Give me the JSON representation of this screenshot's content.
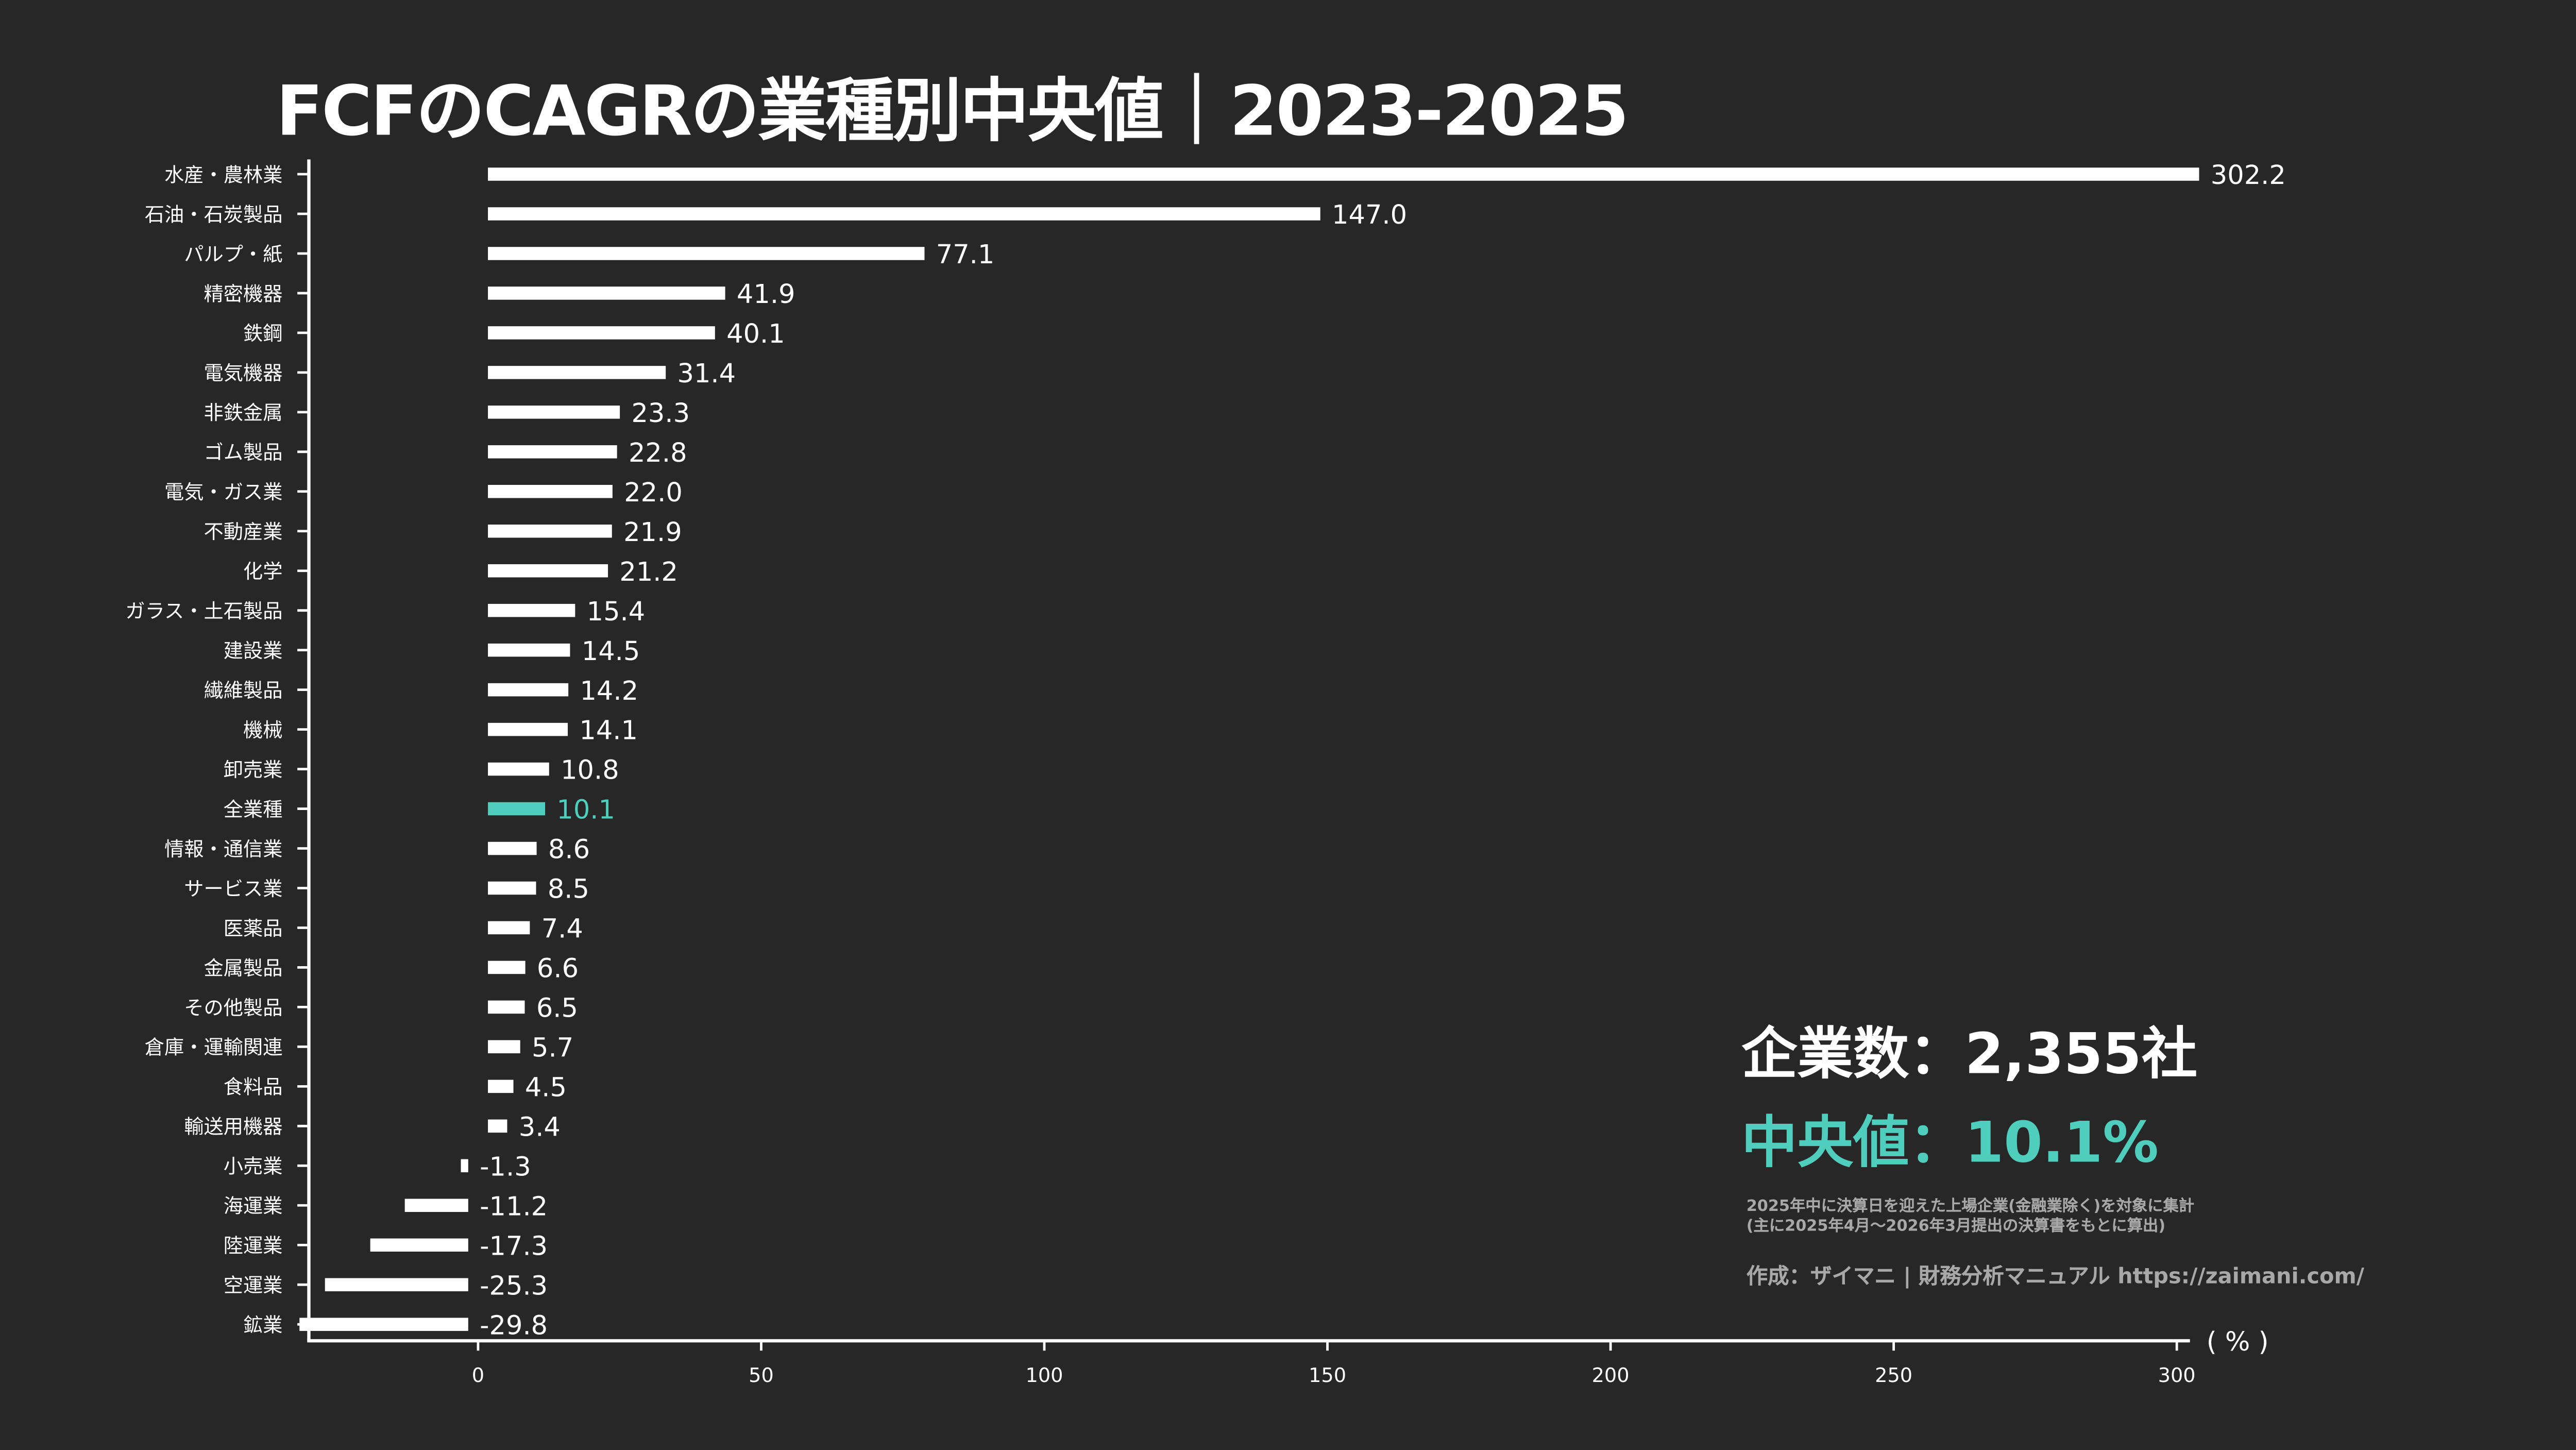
{
  "title": "FCFのCAGRの業種別中央値｜2023-2025",
  "summary": {
    "count_text": "企業数：2,355社",
    "median_text": "中央値：10.1%"
  },
  "notes": [
    "2025年中に決算日を迎えた上場企業(金融業除く)を対象に集計",
    "(主に2025年4月～2026年3月提出の決算書をもとに算出)"
  ],
  "credit": "作成：ザイマニ | 財務分析マニュアル https://zaimani.com/",
  "colors": {
    "background": "#272727",
    "bar": "#ffffff",
    "highlight": "#4fcdbd",
    "note": "#a8a8a8"
  },
  "chart_data": {
    "type": "bar",
    "orientation": "horizontal",
    "categories": [
      "水産・農林業",
      "石油・石炭製品",
      "パルプ・紙",
      "精密機器",
      "鉄鋼",
      "電気機器",
      "非鉄金属",
      "ゴム製品",
      "電気・ガス業",
      "不動産業",
      "化学",
      "ガラス・土石製品",
      "建設業",
      "繊維製品",
      "機械",
      "卸売業",
      "全業種",
      "情報・通信業",
      "サービス業",
      "医薬品",
      "金属製品",
      "その他製品",
      "倉庫・運輸関連",
      "食料品",
      "輸送用機器",
      "小売業",
      "海運業",
      "陸運業",
      "空運業",
      "鉱業"
    ],
    "values": [
      302.2,
      147.0,
      77.1,
      41.9,
      40.1,
      31.4,
      23.3,
      22.8,
      22.0,
      21.9,
      21.2,
      15.4,
      14.5,
      14.2,
      14.1,
      10.8,
      10.1,
      8.6,
      8.5,
      7.4,
      6.6,
      6.5,
      5.7,
      4.5,
      3.4,
      -1.3,
      -11.2,
      -17.3,
      -25.3,
      -29.8
    ],
    "value_labels": [
      "302.2",
      "147.0",
      "77.1",
      "41.9",
      "40.1",
      "31.4",
      "23.3",
      "22.8",
      "22.0",
      "21.9",
      "21.2",
      "15.4",
      "14.5",
      "14.2",
      "14.1",
      "10.8",
      "10.1",
      "8.6",
      "8.5",
      "7.4",
      "6.6",
      "6.5",
      "5.7",
      "4.5",
      "3.4",
      "-1.3",
      "-11.2",
      "-17.3",
      "-25.3",
      "-29.8"
    ],
    "highlight_category": "全業種",
    "xlim": [
      -30,
      300
    ],
    "xticks": [
      0,
      50,
      100,
      150,
      200,
      250,
      300
    ],
    "xtick_labels": [
      "0",
      "50",
      "100",
      "150",
      "200",
      "250",
      "300"
    ],
    "xlabel": "( % )",
    "grid": false
  }
}
